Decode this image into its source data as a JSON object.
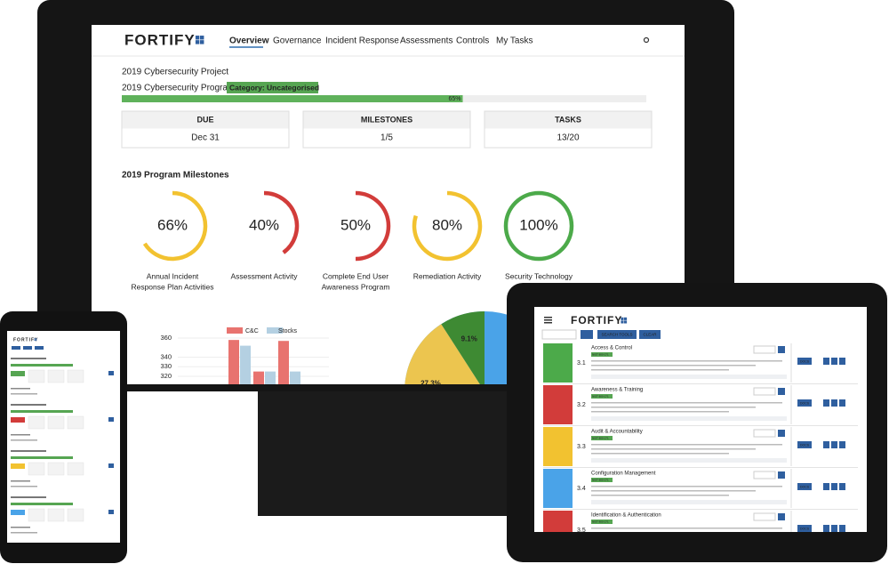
{
  "nav": {
    "logo": "FORTIFY",
    "items": [
      "Overview",
      "Governance",
      "Incident Response",
      "Assessments",
      "Controls",
      "My Tasks"
    ]
  },
  "project": {
    "title": "2019 Cybersecurity Project",
    "program": "2019 Cybersecurity Program",
    "category": "Category: Uncategorised",
    "progress": {
      "value": 65,
      "label": "65%"
    }
  },
  "stats": [
    {
      "label": "DUE",
      "value": "Dec 31"
    },
    {
      "label": "MILESTONES",
      "value": "1/5"
    },
    {
      "label": "TASKS",
      "value": "13/20"
    }
  ],
  "milestones": {
    "title": "2019 Program Milestones",
    "items": [
      {
        "name": [
          "Annual Incident",
          "Response Plan Activities"
        ],
        "value": 66,
        "label": "66%",
        "color": "#f2c230"
      },
      {
        "name": [
          "Assessment Activity"
        ],
        "value": 40,
        "label": "40%",
        "color": "#d23c3a"
      },
      {
        "name": [
          "Complete End User",
          "Awareness Program"
        ],
        "value": 50,
        "label": "50%",
        "color": "#d23c3a"
      },
      {
        "name": [
          "Remediation Activity"
        ],
        "value": 80,
        "label": "80%",
        "color": "#f2c230"
      },
      {
        "name": [
          "Security Technology"
        ],
        "value": 100,
        "label": "100%",
        "color": "#4caa4a"
      }
    ]
  },
  "chart_data": [
    {
      "type": "bar",
      "categories": [
        null,
        null,
        null
      ],
      "series": [
        {
          "name": "C&C",
          "color": "#e8736f",
          "values": [
            358,
            325,
            357
          ]
        },
        {
          "name": "Stocks",
          "color": "#b4d0e2",
          "values": [
            352,
            325,
            325
          ]
        }
      ],
      "ylim": [
        315,
        365
      ],
      "yticks": [
        360,
        340,
        330,
        320
      ]
    },
    {
      "type": "pie",
      "values": [
        9.1,
        27.3
      ],
      "value_labels": [
        "9.1%",
        "27.3%"
      ],
      "colors": [
        "#3e8a33",
        "#ecc54f"
      ]
    }
  ],
  "tablet": {
    "logo": "FORTIFY",
    "buttons": [
      "SEARCH TOOLS",
      "CLEAR"
    ],
    "badge": "NIST 800-171",
    "docs": "DOCS",
    "rows": [
      {
        "number": "3.1",
        "title": "Access & Control",
        "color": "#4caa4a"
      },
      {
        "number": "3.2",
        "title": "Awareness & Training",
        "color": "#d23c3a"
      },
      {
        "number": "3.3",
        "title": "Audit & Accountability",
        "color": "#f2c230"
      },
      {
        "number": "3.4",
        "title": "Configuration Management",
        "color": "#4aa3e8"
      },
      {
        "number": "3.5",
        "title": "Identification & Authentication",
        "color": "#d23c3a"
      }
    ]
  }
}
